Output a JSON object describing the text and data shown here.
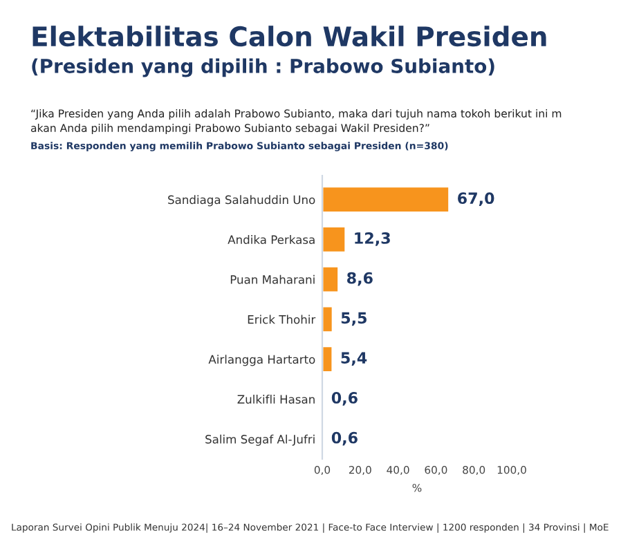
{
  "chart_data": {
    "type": "bar",
    "orientation": "horizontal",
    "title": "Elektabilitas Calon Wakil Presiden",
    "subtitle": "(Presiden yang dipilih : Prabowo Subianto)",
    "annotations": [
      "“Jika Presiden yang Anda pilih adalah Prabowo Subianto, maka dari tujuh nama tokoh berikut ini m\nakan Anda pilih mendampingi Prabowo Subianto sebagai Wakil Presiden?”",
      "Basis: Responden yang memilih Prabowo Subianto sebagai Presiden (n=380)",
      "Laporan Survei Opini Publik Menuju 2024| 16–24 November 2021 | Face-to Face Interview | 1200 responden | 34 Provinsi | MoE"
    ],
    "categories": [
      "Sandiaga Salahuddin Uno",
      "Andika Perkasa",
      "Puan Maharani",
      "Erick Thohir",
      "Airlangga Hartarto",
      "Zulkifli Hasan",
      "Salim Segaf Al-Jufri"
    ],
    "values": [
      67.0,
      12.3,
      8.6,
      5.5,
      5.4,
      0.6,
      0.6
    ],
    "value_labels": [
      "67,0",
      "12,3",
      "8,6",
      "5,5",
      "5,4",
      "0,6",
      "0,6"
    ],
    "color": "#f7941d",
    "xlabel": "%",
    "xlim": [
      0,
      100
    ],
    "xticks": [
      {
        "value": 0,
        "label": "0,0"
      },
      {
        "value": 20,
        "label": "20,0"
      },
      {
        "value": 40,
        "label": "40,0"
      },
      {
        "value": 60,
        "label": "60,0"
      },
      {
        "value": 80,
        "label": "80,0"
      },
      {
        "value": 100,
        "label": "100,0"
      }
    ],
    "grid": false,
    "legend": false
  }
}
